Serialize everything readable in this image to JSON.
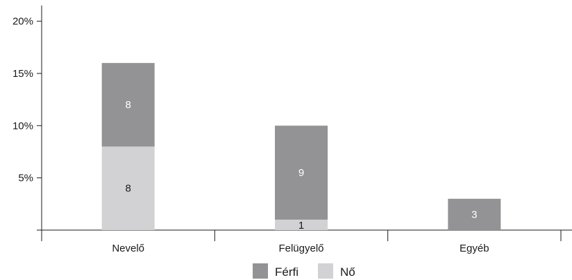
{
  "chart_data": {
    "type": "bar",
    "stacked": true,
    "categories": [
      "Nevelő",
      "Felügyelő",
      "Egyéb"
    ],
    "series": [
      {
        "name": "Nő",
        "color": "#d2d2d4",
        "label_color": "#1a1a1a",
        "values": [
          8,
          1,
          0
        ],
        "labels": [
          "8",
          "1",
          ""
        ]
      },
      {
        "name": "Férfi",
        "color": "#939395",
        "label_color": "#ffffff",
        "values": [
          8,
          9,
          3
        ],
        "labels": [
          "8",
          "9",
          "3"
        ]
      }
    ],
    "y_unit": "%",
    "ylim": [
      0,
      21.5
    ],
    "yticks": [
      5,
      10,
      15,
      20
    ],
    "ytick_labels": [
      "5%",
      "10%",
      "15%",
      "20%"
    ],
    "title": "",
    "xlabel": "",
    "ylabel": "",
    "grid": false,
    "legend": "bottom"
  }
}
